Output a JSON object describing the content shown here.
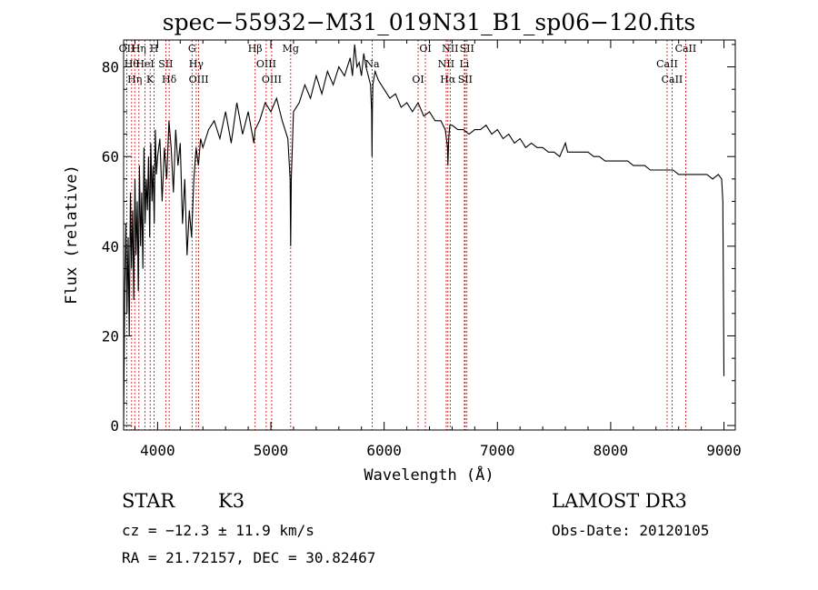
{
  "chart_data": {
    "type": "line",
    "title": "spec−55932−M31_019N31_B1_sp06−120.fits",
    "xlabel": "Wavelength (Å)",
    "ylabel": "Flux (relative)",
    "xlim": [
      3700,
      9100
    ],
    "ylim": [
      -1,
      86
    ],
    "x_ticks": [
      4000,
      5000,
      6000,
      7000,
      8000,
      9000
    ],
    "x_tick_labels": [
      "4000",
      "5000",
      "6000",
      "7000",
      "8000",
      "9000"
    ],
    "y_ticks": [
      0,
      20,
      40,
      60,
      80
    ],
    "y_tick_labels": [
      "0",
      "20",
      "40",
      "60",
      "80"
    ],
    "series": [
      {
        "name": "flux",
        "x": [
          3700,
          3710,
          3720,
          3730,
          3740,
          3750,
          3760,
          3770,
          3780,
          3790,
          3800,
          3810,
          3820,
          3830,
          3840,
          3850,
          3860,
          3870,
          3880,
          3890,
          3900,
          3910,
          3920,
          3930,
          3940,
          3950,
          3960,
          3970,
          3980,
          3990,
          4000,
          4020,
          4040,
          4060,
          4080,
          4100,
          4120,
          4140,
          4160,
          4180,
          4200,
          4220,
          4240,
          4260,
          4280,
          4300,
          4320,
          4340,
          4360,
          4380,
          4400,
          4450,
          4500,
          4550,
          4600,
          4650,
          4700,
          4750,
          4800,
          4850,
          4861,
          4900,
          4950,
          5000,
          5050,
          5100,
          5150,
          5170,
          5175,
          5180,
          5200,
          5250,
          5300,
          5350,
          5400,
          5450,
          5500,
          5550,
          5600,
          5650,
          5700,
          5720,
          5740,
          5760,
          5780,
          5800,
          5820,
          5840,
          5860,
          5880,
          5890,
          5893,
          5896,
          5900,
          5920,
          5950,
          6000,
          6050,
          6100,
          6150,
          6200,
          6250,
          6300,
          6350,
          6400,
          6450,
          6500,
          6540,
          6560,
          6563,
          6570,
          6580,
          6600,
          6650,
          6700,
          6750,
          6800,
          6850,
          6900,
          6950,
          7000,
          7050,
          7100,
          7150,
          7200,
          7250,
          7300,
          7350,
          7400,
          7450,
          7500,
          7550,
          7600,
          7620,
          7650,
          7700,
          7750,
          7800,
          7850,
          7900,
          7950,
          8000,
          8050,
          8100,
          8150,
          8200,
          8250,
          8300,
          8350,
          8400,
          8450,
          8500,
          8550,
          8600,
          8650,
          8700,
          8750,
          8800,
          8850,
          8900,
          8950,
          8980,
          8990,
          9000
        ],
        "values": [
          0,
          30,
          45,
          25,
          42,
          20,
          52,
          35,
          48,
          28,
          55,
          38,
          50,
          30,
          58,
          40,
          52,
          35,
          62,
          45,
          55,
          48,
          60,
          42,
          63,
          50,
          58,
          45,
          66,
          56,
          60,
          64,
          50,
          62,
          55,
          68,
          62,
          52,
          66,
          58,
          63,
          45,
          55,
          38,
          48,
          42,
          55,
          62,
          58,
          64,
          62,
          66,
          68,
          64,
          70,
          63,
          72,
          65,
          70,
          63,
          66,
          68,
          72,
          70,
          73,
          68,
          64,
          55,
          40,
          55,
          70,
          72,
          76,
          73,
          78,
          74,
          79,
          76,
          80,
          78,
          82,
          78,
          85,
          80,
          81,
          78,
          83,
          80,
          78,
          76,
          70,
          60,
          70,
          76,
          79,
          77,
          75,
          73,
          74,
          71,
          72,
          70,
          72,
          69,
          70,
          68,
          68,
          66,
          62,
          58,
          64,
          67,
          67,
          66,
          66,
          65,
          66,
          66,
          67,
          65,
          66,
          64,
          65,
          63,
          64,
          62,
          63,
          62,
          62,
          61,
          61,
          60,
          63,
          61,
          61,
          61,
          61,
          61,
          60,
          60,
          59,
          59,
          59,
          59,
          59,
          58,
          58,
          58,
          57,
          57,
          57,
          57,
          57,
          56,
          56,
          56,
          56,
          56,
          56,
          55,
          56,
          55,
          50,
          11
        ]
      }
    ],
    "lines": [
      {
        "x": 3728,
        "label": "OII"
      },
      {
        "x": 3771,
        "label": "Hθ"
      },
      {
        "x": 3798,
        "label": "Hη"
      },
      {
        "x": 3835,
        "label": "Hη"
      },
      {
        "x": 3889,
        "label": "HeI"
      },
      {
        "x": 3934,
        "label": "K"
      },
      {
        "x": 3969,
        "label": "H"
      },
      {
        "x": 4072,
        "label": "SII"
      },
      {
        "x": 4102,
        "label": "Hδ"
      },
      {
        "x": 4304,
        "label": "G"
      },
      {
        "x": 4341,
        "label": "Hγ"
      },
      {
        "x": 4363,
        "label": "OIII"
      },
      {
        "x": 4861,
        "label": "Hβ"
      },
      {
        "x": 4959,
        "label": "OIII"
      },
      {
        "x": 5007,
        "label": "OIII"
      },
      {
        "x": 5175,
        "label": "Mg"
      },
      {
        "x": 5894,
        "label": "Na"
      },
      {
        "x": 6300,
        "label": "OI"
      },
      {
        "x": 6364,
        "label": "OI"
      },
      {
        "x": 6548,
        "label": "NII"
      },
      {
        "x": 6563,
        "label": "Hα"
      },
      {
        "x": 6583,
        "label": "NII"
      },
      {
        "x": 6708,
        "label": "Li"
      },
      {
        "x": 6716,
        "label": "SII"
      },
      {
        "x": 6731,
        "label": "SII"
      },
      {
        "x": 8498,
        "label": "CaII"
      },
      {
        "x": 8542,
        "label": "CaII"
      },
      {
        "x": 8662,
        "label": "CaII"
      }
    ]
  },
  "info": {
    "star": "STAR",
    "class": "K3",
    "survey": "LAMOST DR3",
    "cz": "cz = −12.3 ± 11.9 km/s",
    "obsdate": "Obs-Date: 20120105",
    "radec": "RA =  21.72157, DEC =  30.82467"
  }
}
